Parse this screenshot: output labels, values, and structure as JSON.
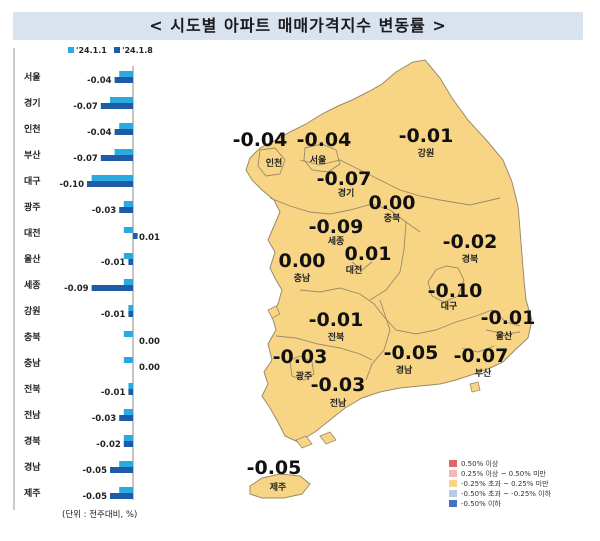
{
  "title": "< 시도별 아파트 매매가격지수 변동률 >",
  "chart_data": {
    "type": "bar",
    "categories": [
      "서울",
      "경기",
      "인천",
      "부산",
      "대구",
      "광주",
      "대전",
      "울산",
      "세종",
      "강원",
      "충북",
      "충남",
      "전북",
      "전남",
      "경북",
      "경남",
      "제주"
    ],
    "series": [
      {
        "name": "'24.1.1",
        "color": "#29abe2",
        "values": [
          -0.03,
          -0.05,
          -0.03,
          -0.04,
          -0.09,
          -0.02,
          -0.02,
          -0.02,
          -0.02,
          -0.01,
          -0.02,
          -0.02,
          -0.01,
          -0.02,
          -0.02,
          -0.03,
          -0.03
        ]
      },
      {
        "name": "'24.1.8",
        "color": "#1f5ca8",
        "values": [
          -0.04,
          -0.07,
          -0.04,
          -0.07,
          -0.1,
          -0.03,
          0.01,
          -0.01,
          -0.09,
          -0.01,
          0.0,
          0.0,
          -0.01,
          -0.03,
          -0.02,
          -0.05,
          -0.05
        ]
      }
    ],
    "labels": [
      "-0.04",
      "-0.07",
      "-0.04",
      "-0.07",
      "-0.10",
      "-0.03",
      "0.01",
      "-0.01",
      "-0.09",
      "-0.01",
      "0.00",
      "0.00",
      "-0.01",
      "-0.03",
      "-0.02",
      "-0.05",
      "-0.05"
    ],
    "unit_note": "(단위 : 전주대비, %)"
  },
  "map": {
    "regions": [
      {
        "name": "인천",
        "value": "-0.04"
      },
      {
        "name": "서울",
        "value": "-0.04"
      },
      {
        "name": "강원",
        "value": "-0.01"
      },
      {
        "name": "경기",
        "value": "-0.07"
      },
      {
        "name": "충북",
        "value": "0.00"
      },
      {
        "name": "세종",
        "value": "-0.09"
      },
      {
        "name": "경북",
        "value": "-0.02"
      },
      {
        "name": "충남",
        "value": "0.00"
      },
      {
        "name": "대전",
        "value": "0.01"
      },
      {
        "name": "대구",
        "value": "-0.10"
      },
      {
        "name": "울산",
        "value": "-0.01"
      },
      {
        "name": "전북",
        "value": "-0.01"
      },
      {
        "name": "광주",
        "value": "-0.03"
      },
      {
        "name": "경남",
        "value": "-0.05"
      },
      {
        "name": "부산",
        "value": "-0.07"
      },
      {
        "name": "전남",
        "value": "-0.03"
      },
      {
        "name": "제주",
        "value": "-0.05"
      }
    ],
    "fill_color": "#f8d584",
    "border_color": "#9a8a6a"
  },
  "legend": [
    {
      "label": "0.50% 이상",
      "color": "#e06666"
    },
    {
      "label": "0.25% 이상 ~ 0.50% 미만",
      "color": "#f4b8b8"
    },
    {
      "label": "-0.25% 초과 ~ 0.25% 미만",
      "color": "#f8d584"
    },
    {
      "label": "-0.50% 초과 ~ -0.25% 이하",
      "color": "#b7c9e8"
    },
    {
      "label": "-0.50% 이하",
      "color": "#4472c4"
    }
  ]
}
